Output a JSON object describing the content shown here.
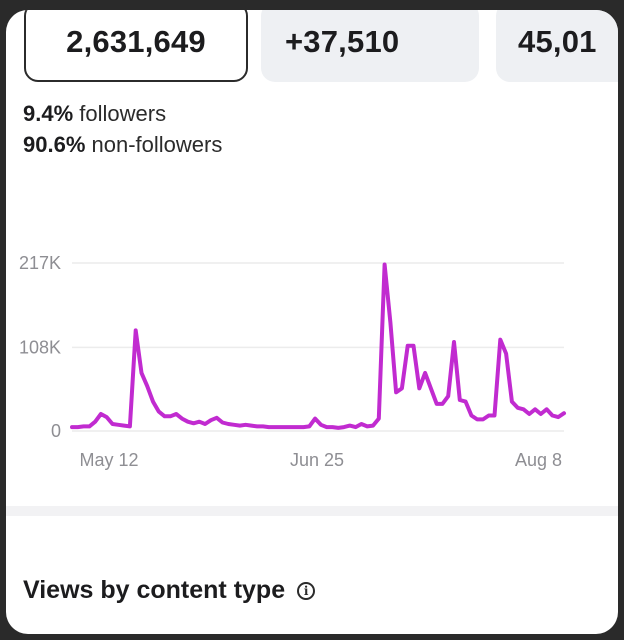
{
  "metrics": {
    "views": "2,631,649",
    "net_followers": "+37,510",
    "partial_third": "45,01"
  },
  "audience": {
    "followers_pct": "9.4%",
    "followers_label": "followers",
    "non_followers_pct": "90.6%",
    "non_followers_label": "non-followers"
  },
  "section": {
    "title": "Views by content type",
    "info_icon": "info-icon"
  },
  "colors": {
    "line": "#c12bd0",
    "grid": "#ececec",
    "axis_text": "#8e8e93"
  },
  "chart_data": {
    "type": "line",
    "title": "",
    "xlabel": "",
    "ylabel": "",
    "y_ticks": [
      "217K",
      "108K",
      "0"
    ],
    "y_tick_values": [
      217000,
      108000,
      0
    ],
    "x_tick_labels": [
      "May 12",
      "Jun 25",
      "Aug 8"
    ],
    "ylim": [
      0,
      217000
    ],
    "grid": true,
    "series": [
      {
        "values": [
          5000,
          5000,
          6000,
          6000,
          12000,
          22000,
          18000,
          9000,
          8000,
          7000,
          6000,
          130000,
          75000,
          58000,
          38000,
          25000,
          19000,
          19000,
          22000,
          16000,
          12000,
          10000,
          12000,
          9000,
          14000,
          17000,
          11000,
          9000,
          8000,
          7000,
          8000,
          7000,
          6000,
          6000,
          5000,
          5000,
          5000,
          5000,
          5000,
          5000,
          5000,
          6000,
          16000,
          8000,
          5000,
          5000,
          4000,
          5000,
          7000,
          5000,
          9000,
          6000,
          7000,
          16000,
          215000,
          140000,
          50000,
          55000,
          110000,
          110000,
          55000,
          75000,
          55000,
          35000,
          35000,
          45000,
          115000,
          40000,
          38000,
          20000,
          15000,
          15000,
          20000,
          20000,
          118000,
          100000,
          38000,
          30000,
          28000,
          22000,
          28000,
          22000,
          28000,
          20000,
          18000,
          23000
        ]
      }
    ]
  }
}
